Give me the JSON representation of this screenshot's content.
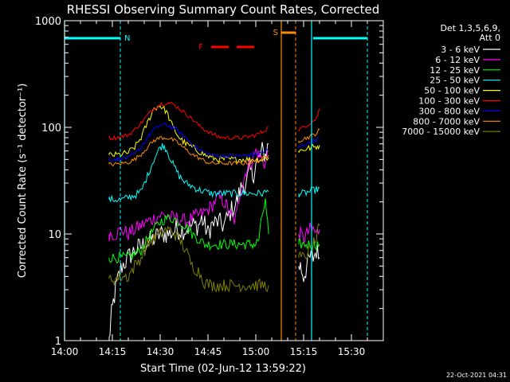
{
  "chart_data": {
    "type": "line",
    "title": "RHESSI Observing Summary Count Rates, Corrected",
    "xlabel": "Start Time (02-Jun-12 13:59:22)",
    "ylabel": "Corrected Count Rate (s⁻¹ detector⁻¹)",
    "y_scale": "log",
    "ylim": [
      1,
      1000
    ],
    "xlim_minutes": [
      0,
      100
    ],
    "x_ticks": [
      {
        "label": "14:00",
        "value": 0
      },
      {
        "label": "14:15",
        "value": 15
      },
      {
        "label": "14:30",
        "value": 30
      },
      {
        "label": "14:45",
        "value": 45
      },
      {
        "label": "15:00",
        "value": 60
      },
      {
        "label": "15:15",
        "value": 75
      },
      {
        "label": "15:30",
        "value": 90
      }
    ],
    "y_ticks": [
      {
        "label": "1",
        "value": 1
      },
      {
        "label": "10",
        "value": 10
      },
      {
        "label": "100",
        "value": 100
      },
      {
        "label": "1000",
        "value": 1000
      }
    ],
    "legend_header": [
      "Det 1,3,5,6,9,",
      "Att 0"
    ],
    "legend_position": "right",
    "series": [
      {
        "name": "3 - 6 keV",
        "color": "#ffffff",
        "segments": [
          {
            "x": [
              14,
              14.5,
              15,
              16,
              17,
              18,
              20,
              22,
              25,
              28,
              30,
              33,
              35,
              38,
              40,
              42,
              43,
              44,
              45,
              46,
              48,
              50,
              52,
              54,
              55,
              56,
              57,
              58,
              59,
              60,
              61,
              62,
              63,
              64
            ],
            "y": [
              1,
              1.5,
              2,
              3,
              4,
              5,
              6,
              7,
              8,
              9,
              10,
              10,
              11,
              11,
              12,
              12,
              14,
              12,
              10,
              12,
              13,
              12,
              16,
              20,
              25,
              30,
              28,
              40,
              35,
              45,
              50,
              60,
              55,
              70
            ]
          },
          {
            "x": [
              73.5,
              74,
              75,
              76,
              77,
              78,
              79,
              80
            ],
            "y": [
              5,
              5,
              4,
              5,
              6,
              6,
              7,
              6
            ]
          }
        ]
      },
      {
        "name": "6 - 12 keV",
        "color": "#ff00ff",
        "segments": [
          {
            "x": [
              14,
              16,
              18,
              20,
              22,
              24,
              26,
              28,
              30,
              32,
              34,
              36,
              38,
              40,
              42,
              44,
              46,
              48,
              50,
              51,
              52,
              53,
              54,
              55,
              56,
              57,
              58,
              59,
              60,
              61,
              62,
              63,
              64
            ],
            "y": [
              10,
              10,
              11,
              10,
              11,
              12,
              13,
              14,
              15,
              15,
              14,
              14,
              13,
              14,
              15,
              16,
              18,
              22,
              20,
              18,
              15,
              13,
              15,
              25,
              30,
              40,
              45,
              50,
              60,
              55,
              50,
              45,
              60
            ]
          },
          {
            "x": [
              73.5,
              74,
              75,
              76,
              77,
              78,
              79,
              80
            ],
            "y": [
              10,
              10,
              9,
              10,
              11,
              11,
              10,
              11
            ]
          }
        ]
      },
      {
        "name": "12 - 25 keV",
        "color": "#00ff00",
        "segments": [
          {
            "x": [
              14,
              16,
              18,
              20,
              22,
              24,
              26,
              28,
              30,
              32,
              34,
              36,
              38,
              40,
              42,
              44,
              46,
              48,
              50,
              52,
              54,
              55,
              56,
              57,
              58,
              59,
              60,
              61,
              62,
              63,
              64
            ],
            "y": [
              6,
              6,
              6,
              6,
              6.5,
              7,
              9,
              11,
              13,
              14,
              14,
              13,
              12,
              10,
              9,
              8,
              8,
              8,
              8,
              8,
              8,
              8,
              8,
              8,
              8,
              8,
              8,
              9,
              15,
              20,
              10
            ]
          },
          {
            "x": [
              73.5,
              75,
              77,
              79,
              80
            ],
            "y": [
              8,
              8,
              8,
              8,
              8
            ]
          }
        ]
      },
      {
        "name": "25 - 50 keV",
        "color": "#00ffff",
        "segments": [
          {
            "x": [
              14,
              16,
              18,
              20,
              22,
              24,
              26,
              28,
              30,
              31,
              32,
              34,
              36,
              38,
              40,
              42,
              44,
              46,
              48,
              50,
              52,
              54,
              56,
              58,
              60,
              62,
              64
            ],
            "y": [
              21,
              21,
              21,
              22,
              23,
              25,
              35,
              50,
              65,
              68,
              62,
              45,
              35,
              30,
              28,
              26,
              25,
              24,
              24,
              24,
              24,
              24,
              24,
              24,
              24,
              24,
              25
            ]
          },
          {
            "x": [
              73.5,
              75,
              77,
              79,
              80
            ],
            "y": [
              24,
              24,
              25,
              26,
              27
            ]
          }
        ]
      },
      {
        "name": "50 - 100 keV",
        "color": "#ffff00",
        "segments": [
          {
            "x": [
              14,
              16,
              18,
              20,
              22,
              24,
              26,
              28,
              30,
              32,
              34,
              36,
              38,
              40,
              42,
              44,
              46,
              48,
              50,
              52,
              54,
              56,
              58,
              60,
              62,
              64
            ],
            "y": [
              55,
              55,
              56,
              58,
              65,
              80,
              110,
              150,
              160,
              140,
              100,
              80,
              70,
              65,
              60,
              55,
              52,
              50,
              50,
              50,
              50,
              50,
              50,
              50,
              50,
              52
            ]
          },
          {
            "x": [
              73.5,
              75,
              77,
              79,
              80
            ],
            "y": [
              60,
              62,
              64,
              66,
              68
            ]
          }
        ]
      },
      {
        "name": "100 - 300 keV",
        "color": "#ff0000",
        "segments": [
          {
            "x": [
              14,
              16,
              18,
              20,
              22,
              24,
              26,
              28,
              30,
              32,
              34,
              36,
              38,
              40,
              42,
              44,
              46,
              48,
              50,
              52,
              54,
              56,
              58,
              60,
              62,
              64
            ],
            "y": [
              80,
              80,
              82,
              85,
              95,
              110,
              130,
              150,
              165,
              170,
              165,
              150,
              135,
              120,
              105,
              95,
              88,
              82,
              80,
              80,
              80,
              80,
              82,
              85,
              90,
              100
            ]
          },
          {
            "x": [
              73.5,
              75,
              77,
              79,
              80
            ],
            "y": [
              95,
              100,
              110,
              120,
              150
            ]
          }
        ]
      },
      {
        "name": "300 - 800 keV",
        "color": "#0000ff",
        "segments": [
          {
            "x": [
              14,
              16,
              18,
              20,
              22,
              24,
              26,
              28,
              30,
              32,
              34,
              36,
              38,
              40,
              42,
              44,
              46,
              48,
              50,
              52,
              54,
              56,
              58,
              60,
              62,
              64
            ],
            "y": [
              50,
              50,
              51,
              52,
              56,
              65,
              80,
              95,
              105,
              105,
              100,
              90,
              80,
              70,
              62,
              58,
              55,
              54,
              54,
              54,
              54,
              54,
              55,
              56,
              58,
              62
            ]
          },
          {
            "x": [
              73.5,
              75,
              77,
              79,
              80
            ],
            "y": [
              65,
              68,
              72,
              76,
              80
            ]
          }
        ]
      },
      {
        "name": "800 - 7000 keV",
        "color": "#ff8c00",
        "segments": [
          {
            "x": [
              14,
              16,
              18,
              20,
              22,
              24,
              26,
              28,
              30,
              32,
              34,
              36,
              38,
              40,
              42,
              44,
              46,
              48,
              50,
              52,
              54,
              56,
              58,
              60,
              62,
              64
            ],
            "y": [
              45,
              45,
              46,
              47,
              50,
              56,
              65,
              75,
              80,
              80,
              76,
              70,
              62,
              56,
              52,
              48,
              46,
              46,
              46,
              46,
              46,
              46,
              47,
              48,
              50,
              55
            ]
          },
          {
            "x": [
              73.5,
              75,
              77,
              79,
              80
            ],
            "y": [
              75,
              78,
              82,
              88,
              95
            ]
          }
        ]
      },
      {
        "name": "7000 - 15000 keV",
        "color": "#808000",
        "segments": [
          {
            "x": [
              14,
              16,
              18,
              20,
              22,
              24,
              26,
              28,
              30,
              32,
              34,
              36,
              38,
              40,
              42,
              44,
              46,
              48,
              50,
              52,
              54,
              56,
              58,
              60,
              62,
              64
            ],
            "y": [
              3.8,
              3.8,
              4,
              4,
              5,
              6,
              8,
              9,
              10,
              11,
              10.5,
              9,
              7,
              5,
              4.5,
              3.5,
              3.3,
              3.3,
              3.3,
              3.3,
              3.3,
              3.3,
              3.3,
              3.3,
              3.3,
              3.3
            ]
          },
          {
            "x": [
              73.5,
              75,
              77,
              79,
              80
            ],
            "y": [
              6,
              6,
              7,
              9,
              12
            ]
          }
        ]
      }
    ],
    "annotations": [
      {
        "label": "N",
        "color": "#00ffff",
        "kind": "night",
        "bars": [
          [
            0,
            17.5
          ],
          [
            78,
            95
          ]
        ],
        "solid_lines": [
          0,
          77.5
        ],
        "dashed_lines": [
          17.5,
          95
        ]
      },
      {
        "label": "F",
        "color": "#ff0000",
        "kind": "flare",
        "range": [
          46,
          62
        ]
      },
      {
        "label": "S",
        "color": "#ff8c00",
        "kind": "saa",
        "range": [
          68,
          72.5
        ],
        "solid_line": 68,
        "dashed_line": 72.5
      }
    ],
    "footer_timestamp": "22-Oct-2021 04:31"
  }
}
